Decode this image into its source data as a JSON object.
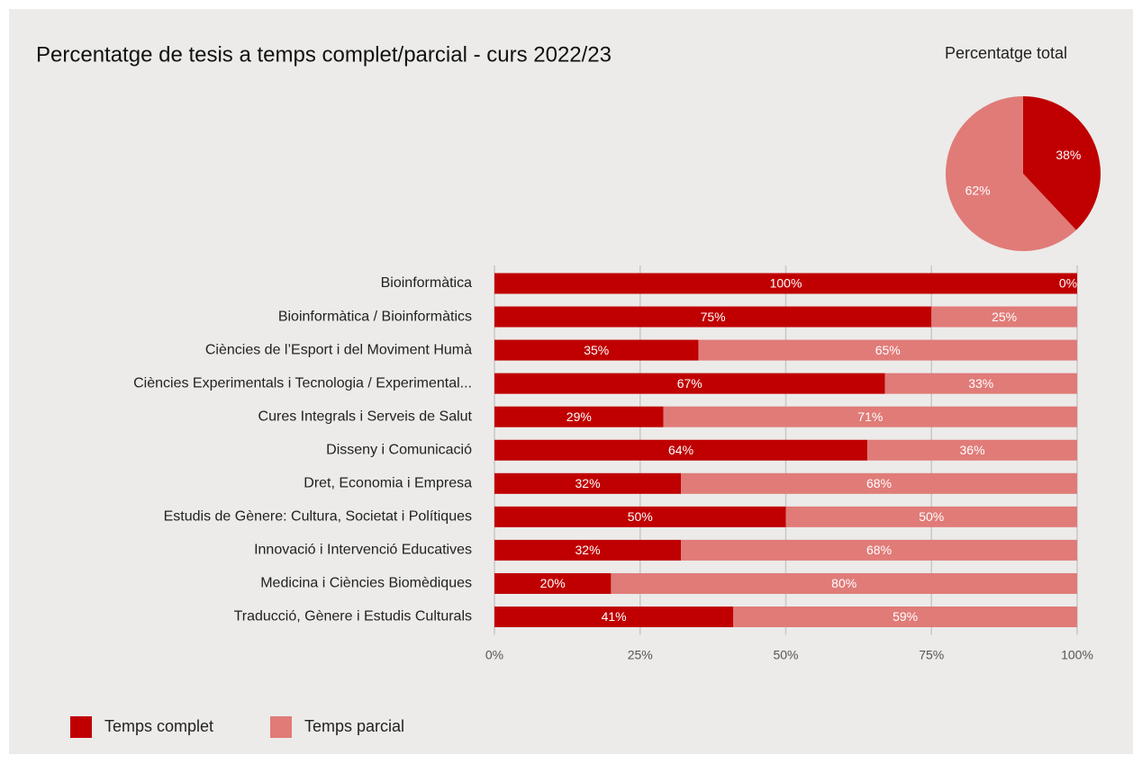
{
  "chart_data": [
    {
      "type": "bar",
      "orientation": "horizontal",
      "stacked": true,
      "title": "Percentatge de tesis a temps complet/parcial - curs 2022/23",
      "categories": [
        "Bioinformàtica",
        "Bioinformàtica / Bioinformàtics",
        "Ciències de l’Esport i del Moviment Humà",
        "Ciències Experimentals i Tecnologia / Experimental...",
        "Cures Integrals i Serveis de Salut",
        "Disseny i Comunicació",
        "Dret, Economia i Empresa",
        "Estudis de Gènere: Cultura, Societat i Polítiques",
        "Innovació i Intervenció Educatives",
        "Medicina i Ciències Biomèdiques",
        "Traducció, Gènere i Estudis Culturals"
      ],
      "series": [
        {
          "name": "Temps complet",
          "color": "#c00000",
          "values": [
            100,
            75,
            35,
            67,
            29,
            64,
            32,
            50,
            32,
            20,
            41
          ],
          "value_labels": [
            "100%",
            "75%",
            "35%",
            "67%",
            "29%",
            "64%",
            "32%",
            "50%",
            "32%",
            "20%",
            "41%"
          ]
        },
        {
          "name": "Temps parcial",
          "color": "#e07b78",
          "values": [
            0,
            25,
            65,
            33,
            71,
            36,
            68,
            50,
            68,
            80,
            59
          ],
          "value_labels": [
            "0%",
            "25%",
            "65%",
            "33%",
            "71%",
            "36%",
            "68%",
            "50%",
            "68%",
            "80%",
            "59%"
          ]
        }
      ],
      "xlim": [
        0,
        100
      ],
      "xticks": [
        {
          "value": 0,
          "label": "0%"
        },
        {
          "value": 25,
          "label": "25%"
        },
        {
          "value": 50,
          "label": "50%"
        },
        {
          "value": 75,
          "label": "75%"
        },
        {
          "value": 100,
          "label": "100%"
        }
      ],
      "grid": true,
      "legend": "bottom-left"
    },
    {
      "type": "pie",
      "title": "Percentatge total",
      "values": [
        38,
        62
      ],
      "value_labels": [
        "38%",
        "62%"
      ],
      "colors": [
        "#c00000",
        "#e07b78"
      ]
    }
  ]
}
